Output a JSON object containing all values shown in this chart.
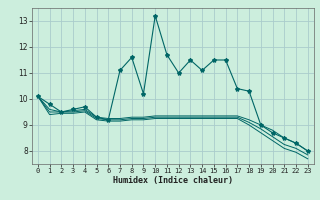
{
  "title": "",
  "xlabel": "Humidex (Indice chaleur)",
  "background_color": "#cceedd",
  "grid_color": "#aacccc",
  "line_color": "#006666",
  "x_values": [
    0,
    1,
    2,
    3,
    4,
    5,
    6,
    7,
    8,
    9,
    10,
    11,
    12,
    13,
    14,
    15,
    16,
    17,
    18,
    19,
    20,
    21,
    22,
    23
  ],
  "main_y": [
    10.1,
    9.8,
    9.5,
    9.6,
    9.7,
    9.3,
    9.2,
    11.1,
    11.6,
    10.2,
    13.2,
    11.7,
    11.0,
    11.5,
    11.1,
    11.5,
    11.5,
    10.4,
    10.3,
    9.0,
    8.7,
    8.5,
    8.3,
    8.0
  ],
  "line_smooth_y": [
    10.1,
    9.6,
    9.5,
    9.55,
    9.6,
    9.3,
    9.25,
    9.25,
    9.3,
    9.3,
    9.35,
    9.35,
    9.35,
    9.35,
    9.35,
    9.35,
    9.35,
    9.35,
    9.2,
    9.0,
    8.8,
    8.5,
    8.3,
    8.0
  ],
  "line_low1_y": [
    10.1,
    9.5,
    9.5,
    9.5,
    9.55,
    9.25,
    9.2,
    9.2,
    9.25,
    9.25,
    9.3,
    9.3,
    9.3,
    9.3,
    9.3,
    9.3,
    9.3,
    9.3,
    9.1,
    8.85,
    8.55,
    8.25,
    8.1,
    7.85
  ],
  "line_low2_y": [
    10.1,
    9.4,
    9.45,
    9.45,
    9.5,
    9.2,
    9.15,
    9.15,
    9.2,
    9.2,
    9.25,
    9.25,
    9.25,
    9.25,
    9.25,
    9.25,
    9.25,
    9.25,
    9.0,
    8.7,
    8.4,
    8.1,
    7.95,
    7.7
  ],
  "ylim": [
    7.5,
    13.5
  ],
  "xlim": [
    -0.5,
    23.5
  ],
  "yticks": [
    8,
    9,
    10,
    11,
    12,
    13
  ],
  "xticks": [
    0,
    1,
    2,
    3,
    4,
    5,
    6,
    7,
    8,
    9,
    10,
    11,
    12,
    13,
    14,
    15,
    16,
    17,
    18,
    19,
    20,
    21,
    22,
    23
  ],
  "xlabel_fontsize": 6,
  "tick_fontsize": 5,
  "marker_size": 3
}
